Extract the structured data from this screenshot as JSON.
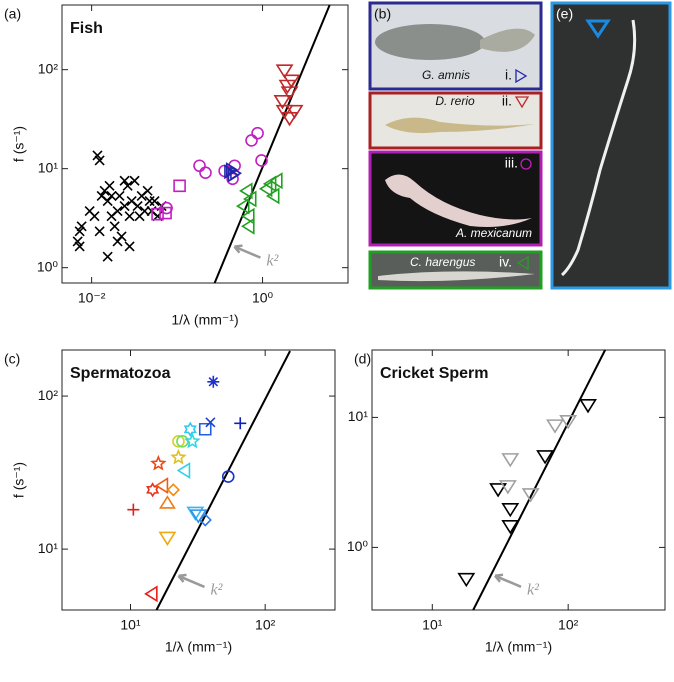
{
  "chart_data": [
    {
      "type": "scatter",
      "panel_label": "(a)",
      "title": "Fish",
      "xlabel": "1/λ (mm⁻¹)",
      "ylabel": "f (s⁻¹)",
      "log": true,
      "xlim": [
        0.0045,
        10
      ],
      "ylim": [
        0.7,
        450
      ],
      "xticks": [
        {
          "value": 0.01,
          "label": "10⁻²"
        },
        {
          "value": 1,
          "label": "10⁰"
        }
      ],
      "yticks": [
        {
          "value": 1,
          "label": "10⁰"
        },
        {
          "value": 10,
          "label": "10¹"
        },
        {
          "value": 100,
          "label": "10²"
        }
      ],
      "series": [
        {
          "marker": "x",
          "color": "#000000",
          "x": [
            0.00686,
            0.00724,
            0.00724,
            0.00764,
            0.00948,
            0.0108,
            0.0117,
            0.0124,
            0.0124,
            0.0131,
            0.0142,
            0.0154,
            0.0162,
            0.0171,
            0.0171,
            0.0186,
            0.0201,
            0.0212,
            0.0224,
            0.0243,
            0.0243,
            0.0264,
            0.0278,
            0.0294,
            0.0318,
            0.0345,
            0.0364,
            0.0385,
            0.0417,
            0.0452,
            0.0477,
            0.0503,
            0.0545,
            0.0591,
            0.0659,
            0.0278,
            0.0201,
            0.0154
          ],
          "values": [
            1.84,
            2.33,
            1.64,
            2.62,
            3.73,
            3.31,
            13.6,
            12.1,
            2.33,
            5.3,
            5.97,
            4.71,
            6.71,
            5.3,
            3.31,
            2.62,
            3.73,
            5.3,
            2.07,
            4.19,
            7.55,
            6.71,
            3.31,
            4.71,
            7.55,
            4.19,
            3.31,
            5.3,
            3.73,
            5.97,
            4.71,
            3.73,
            4.71,
            3.31,
            4.19,
            1.64,
            1.84,
            1.29
          ]
        },
        {
          "marker": "circle",
          "color": "#c21fc2",
          "x": [
            0.0753,
            0.183,
            0.215,
            0.36,
            0.471,
            0.743,
            0.875,
            0.973,
            0.446
          ],
          "values": [
            4.0,
            10.7,
            9.1,
            9.5,
            10.7,
            19.3,
            22.8,
            12.1,
            7.9
          ]
        },
        {
          "marker": "square",
          "color": "#c21fc2",
          "x": [
            0.0591,
            0.107,
            0.0733
          ],
          "values": [
            3.47,
            6.71,
            3.56
          ]
        },
        {
          "marker": "triangle-right",
          "color": "#2424a8",
          "x": [
            0.4,
            0.44,
            0.47,
            0.42
          ],
          "values": [
            9.3,
            8.6,
            9.0,
            9.8
          ]
        },
        {
          "marker": "triangle-down",
          "color": "#c0282a",
          "x": [
            1.81,
            1.96,
            2.07,
            2.18,
            1.81,
            2.07,
            1.71,
            2.37
          ],
          "values": [
            100,
            70,
            60,
            79,
            39,
            33,
            49,
            39
          ]
        },
        {
          "marker": "triangle-left",
          "color": "#22a022",
          "x": [
            0.668,
            0.615,
            0.705,
            0.705,
            1.14,
            1.27,
            1.38,
            1.5,
            0.743
          ],
          "values": [
            5.97,
            4.19,
            3.31,
            2.62,
            6.26,
            7.03,
            5.3,
            7.55,
            4.94
          ]
        }
      ],
      "fit": {
        "x": [
          0.275,
          6.1
        ],
        "values": [
          0.7,
          450
        ]
      },
      "annotation": "k²"
    },
    {
      "type": "scatter",
      "panel_label": "(c)",
      "title": "Spermatozoa",
      "xlabel": "1/λ (mm⁻¹)",
      "ylabel": "f (s⁻¹)",
      "log": true,
      "xlim": [
        3.1,
        330
      ],
      "ylim": [
        4,
        200
      ],
      "xticks": [
        {
          "value": 10,
          "label": "10¹"
        },
        {
          "value": 100,
          "label": "10²"
        }
      ],
      "yticks": [
        {
          "value": 10,
          "label": "10¹"
        },
        {
          "value": 100,
          "label": "10²"
        }
      ],
      "series": [
        {
          "marker": "plus",
          "color": "#e02018",
          "x": [
            10.5
          ],
          "values": [
            18.1
          ]
        },
        {
          "marker": "hexagram",
          "color": "#e8301a",
          "x": [
            14.6
          ],
          "values": [
            24.4
          ]
        },
        {
          "marker": "star",
          "color": "#ec4a14",
          "x": [
            16.1
          ],
          "values": [
            36.2
          ]
        },
        {
          "marker": "triangle-left",
          "color": "#f05a12",
          "x": [
            17.5
          ],
          "values": [
            26
          ]
        },
        {
          "marker": "diamond",
          "color": "#f08a10",
          "x": [
            20.8
          ],
          "values": [
            24.4
          ]
        },
        {
          "marker": "triangle-up",
          "color": "#f07a10",
          "x": [
            18.8
          ],
          "values": [
            19.8
          ]
        },
        {
          "marker": "triangle-down",
          "color": "#f0a810",
          "x": [
            18.8
          ],
          "values": [
            12
          ]
        },
        {
          "marker": "triangle-left",
          "color": "#e82018",
          "x": [
            14.6
          ],
          "values": [
            5.1
          ]
        },
        {
          "marker": "circle",
          "color": "#d8d020",
          "x": [
            22.7
          ],
          "values": [
            50.6
          ]
        },
        {
          "marker": "star",
          "color": "#e0c020",
          "x": [
            22.7
          ],
          "values": [
            39.7
          ]
        },
        {
          "marker": "circle",
          "color": "#70dc60",
          "x": [
            24.3
          ],
          "values": [
            50.6
          ]
        },
        {
          "marker": "star",
          "color": "#30d8e0",
          "x": [
            28.8
          ],
          "values": [
            50.6
          ]
        },
        {
          "marker": "triangle-left",
          "color": "#30d0e8",
          "x": [
            25.5
          ],
          "values": [
            32.6
          ]
        },
        {
          "marker": "hexagram",
          "color": "#30c8f0",
          "x": [
            27.8
          ],
          "values": [
            60.7
          ]
        },
        {
          "marker": "square",
          "color": "#2060e0",
          "x": [
            35.9
          ],
          "values": [
            60.7
          ]
        },
        {
          "marker": "x",
          "color": "#2040d8",
          "x": [
            39.2
          ],
          "values": [
            67.4
          ]
        },
        {
          "marker": "plus",
          "color": "#1020c0",
          "x": [
            65.3
          ],
          "values": [
            66.4
          ]
        },
        {
          "marker": "asterisk",
          "color": "#2030d0",
          "x": [
            41.2
          ],
          "values": [
            124
          ]
        },
        {
          "marker": "circle",
          "color": "#1830c8",
          "x": [
            53.2
          ],
          "values": [
            29.8
          ]
        },
        {
          "marker": "triangle-down",
          "color": "#30b8f0",
          "x": [
            30.3
          ],
          "values": [
            17.5
          ]
        },
        {
          "marker": "diamond",
          "color": "#2a7ae8",
          "x": [
            35.9
          ],
          "values": [
            15.5
          ]
        },
        {
          "marker": "triangle-down",
          "color": "#2a90ea",
          "x": [
            31.9
          ],
          "values": [
            16.8
          ]
        }
      ],
      "fit": {
        "x": [
          15.6,
          153
        ],
        "values": [
          4,
          197
        ]
      },
      "annotation": "k²"
    },
    {
      "type": "scatter",
      "panel_label": "(d)",
      "title": "Cricket Sperm",
      "xlabel": "1/λ (mm⁻¹)",
      "log": true,
      "xlim": [
        3.6,
        516
      ],
      "ylim": [
        0.33,
        33
      ],
      "xticks": [
        {
          "value": 10,
          "label": "10¹"
        },
        {
          "value": 100,
          "label": "10²"
        }
      ],
      "yticks": [
        {
          "value": 1,
          "label": "10⁰"
        },
        {
          "value": 10,
          "label": "10¹"
        }
      ],
      "series": [
        {
          "marker": "triangle-down",
          "color": "#000000",
          "x": [
            17.8,
            30.5,
            37.5,
            37.5,
            67.6,
            140
          ],
          "values": [
            0.58,
            2.84,
            2.0,
            1.48,
            5.1,
            12.6
          ]
        },
        {
          "marker": "triangle-down",
          "color": "#a0a0a0",
          "x": [
            37.5,
            36,
            53,
            80,
            100
          ],
          "values": [
            4.84,
            3.0,
            2.6,
            8.8,
            9.5
          ]
        }
      ],
      "fit": {
        "x": [
          20,
          187
        ],
        "values": [
          0.33,
          33
        ]
      },
      "annotation": "k²"
    }
  ],
  "figure_panels": {
    "b": {
      "label": "(b)",
      "items": [
        {
          "species": "G. amnis",
          "numeral": "i."
        },
        {
          "species": "D. rerio",
          "numeral": "ii."
        },
        {
          "species": "A. mexicanum",
          "numeral": "iii."
        },
        {
          "species": "C. harengus",
          "numeral": "iv."
        }
      ]
    },
    "e": {
      "label": "(e)"
    }
  }
}
